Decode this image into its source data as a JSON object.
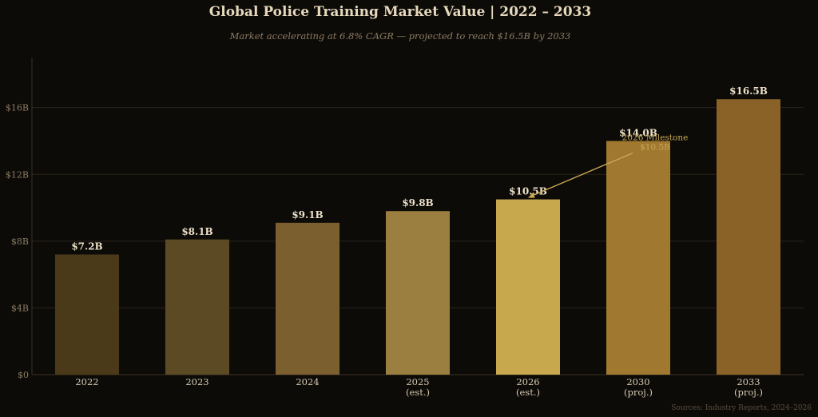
{
  "chart_data": {
    "type": "bar",
    "title": "Global Police Training Market Value  |  2022 – 2033",
    "subtitle": "Market accelerating at 6.8% CAGR — projected to reach $16.5B by 2033",
    "categories": [
      "2022",
      "2023",
      "2024",
      "2025",
      "2026",
      "2030",
      "2033"
    ],
    "category_notes": [
      "",
      "",
      "",
      "(est.)",
      "(est.)",
      "(proj.)",
      "(proj.)"
    ],
    "values": [
      7.2,
      8.1,
      9.1,
      9.8,
      10.5,
      14.0,
      16.5
    ],
    "data_labels": [
      "$7.2B",
      "$8.1B",
      "$9.1B",
      "$9.8B",
      "$10.5B",
      "$14.0B",
      "$16.5B"
    ],
    "bar_colors": [
      "#4a3a1a",
      "#5b4a24",
      "#7b5f2e",
      "#9a7f40",
      "#c8a84d",
      "#a07830",
      "#8a6228"
    ],
    "ylim": [
      0,
      19
    ],
    "yticks": [
      0,
      4,
      8,
      12,
      16
    ],
    "ytick_labels": [
      "$0",
      "$4B",
      "$8B",
      "$12B",
      "$16B"
    ],
    "xlabel": "",
    "ylabel": "",
    "grid": true,
    "annotation": {
      "text_line1": "2026 Milestone",
      "text_line2": "$10.5B",
      "target_category": "2026",
      "target_value": 10.5
    },
    "source_note": "Sources: Industry Reports, 2024–2026"
  },
  "colors": {
    "background": "#0d0b08",
    "grid": "#2a241a",
    "axis": "#3a3226",
    "annotation": "#c9a955"
  }
}
